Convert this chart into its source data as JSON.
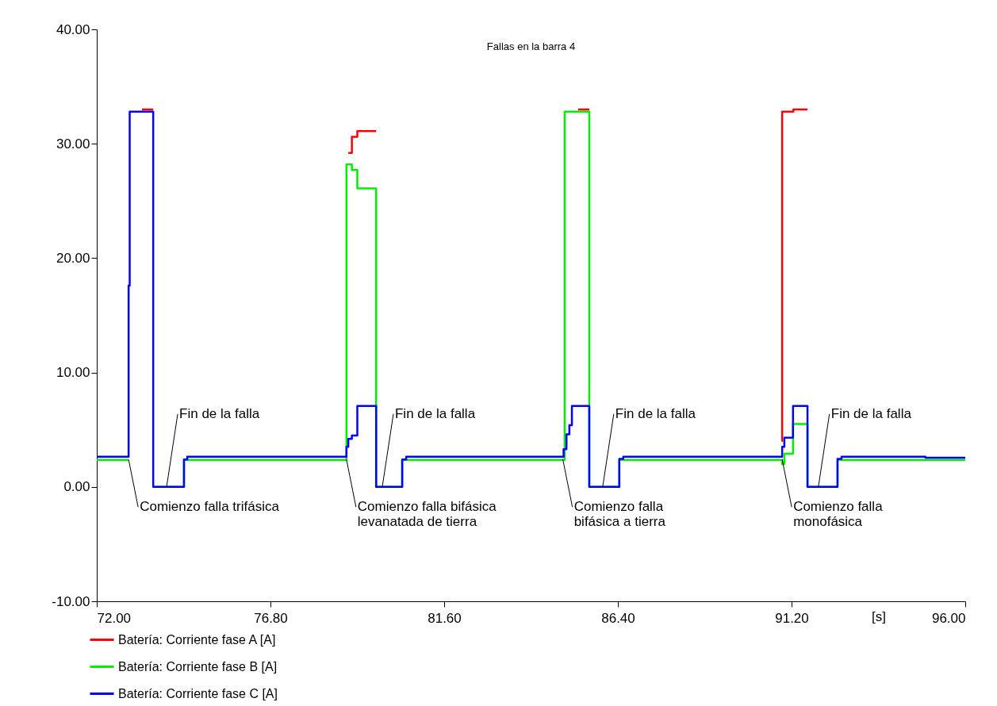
{
  "chart_data": {
    "type": "step",
    "title": "Fallas en la barra 4",
    "xlabel": "[s]",
    "xlim": [
      72,
      96
    ],
    "xticks": [
      {
        "value": 72,
        "label": "72.00"
      },
      {
        "value": 76.8,
        "label": "76.80"
      },
      {
        "value": 81.6,
        "label": "81.60"
      },
      {
        "value": 86.4,
        "label": "86.40"
      },
      {
        "value": 91.2,
        "label": "91.20"
      },
      {
        "value": 96,
        "label": "96.00"
      }
    ],
    "ylim": [
      -10,
      40
    ],
    "yticks": [
      {
        "value": -10,
        "label": "-10.00"
      },
      {
        "value": 0,
        "label": "0.00"
      },
      {
        "value": 10,
        "label": "10.00"
      },
      {
        "value": 20,
        "label": "20.00"
      },
      {
        "value": 30,
        "label": "30.00"
      },
      {
        "value": 40,
        "label": "40.00"
      }
    ],
    "grid": false,
    "legend": "bottom",
    "line_style": "solid",
    "marker": "none",
    "series": [
      {
        "name": "Batería: Corriente fase A [A]",
        "color": "#ff0000",
        "x": [
          73.25,
          73.56,
          null,
          78.95,
          79.05,
          79.2,
          79.72,
          null,
          85.3,
          85.61,
          null,
          90.93,
          90.94,
          91.25,
          91.64
        ],
        "values": [
          33.0,
          33.0,
          null,
          29.2,
          30.6,
          31.1,
          31.1,
          null,
          33.0,
          33.0,
          null,
          4.0,
          32.8,
          33.0,
          33.0
        ]
      },
      {
        "name": "Batería: Corriente fase B [A]",
        "color": "#00ee00",
        "x": [
          72,
          72.88,
          null,
          73.56,
          74.41,
          78.9,
          79.05,
          79.2,
          79.72,
          80.44,
          84.93,
          85.61,
          86.44,
          90.94,
          91.0,
          91.24,
          91.64,
          92.47,
          96
        ],
        "values": [
          2.36,
          2.36,
          null,
          0,
          2.36,
          28.2,
          27.7,
          26.1,
          0,
          2.36,
          32.8,
          0,
          2.36,
          2.0,
          2.9,
          5.5,
          0,
          2.36,
          2.36
        ]
      },
      {
        "name": "Batería: Corriente fase C [A]",
        "color": "#0000ff",
        "x": [
          72,
          72.88,
          72.91,
          73.56,
          74.41,
          74.5,
          78.9,
          78.95,
          79.05,
          79.2,
          79.72,
          80.44,
          80.55,
          84.9,
          84.98,
          85.06,
          85.13,
          85.61,
          86.44,
          86.55,
          90.94,
          91.0,
          91.24,
          91.64,
          92.47,
          92.58,
          94.9,
          96
        ],
        "values": [
          2.64,
          17.6,
          32.8,
          0,
          2.4,
          2.64,
          3.5,
          4.2,
          4.5,
          7.07,
          0,
          2.4,
          2.64,
          3.3,
          4.6,
          5.4,
          7.07,
          0,
          2.45,
          2.64,
          3.5,
          4.3,
          7.07,
          0,
          2.45,
          2.64,
          2.55,
          2.55
        ]
      }
    ],
    "annotations": [
      {
        "text": "Comienzo falla trifásica",
        "x": 72.88,
        "y": 2.4
      },
      {
        "text": "Fin de la falla",
        "x": 73.93,
        "y": 0
      },
      {
        "text": "Comienzo falla bifásica\nlevanatada de tierra",
        "x": 78.9,
        "y": 2.4
      },
      {
        "text": "Fin de la falla",
        "x": 79.89,
        "y": 0
      },
      {
        "text": "Comienzo falla\nbifásica a tierra",
        "x": 84.88,
        "y": 2.4
      },
      {
        "text": "Fin de la falla",
        "x": 85.98,
        "y": 0
      },
      {
        "text": "Comienzo falla\nmonofásica",
        "x": 90.94,
        "y": 2.4
      },
      {
        "text": "Fin de la falla",
        "x": 91.94,
        "y": 0
      }
    ]
  }
}
